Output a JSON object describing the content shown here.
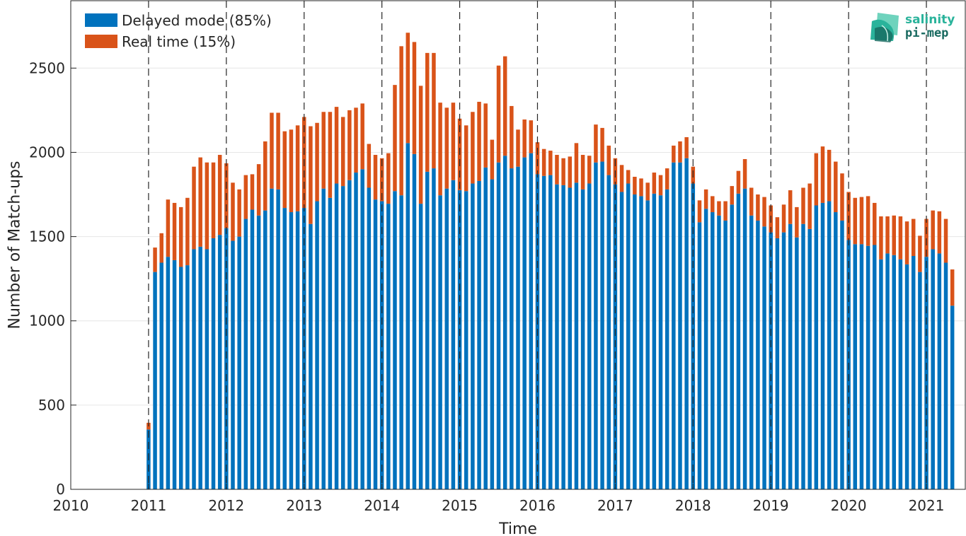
{
  "chart_data": {
    "type": "bar",
    "stacked": true,
    "xlabel": "Time",
    "ylabel": "Number of Match-ups",
    "xlim": [
      2010,
      2021.5
    ],
    "ylim": [
      0,
      2900
    ],
    "x_ticks": [
      "2010",
      "2011",
      "2012",
      "2013",
      "2014",
      "2015",
      "2016",
      "2017",
      "2018",
      "2019",
      "2020",
      "2021"
    ],
    "y_ticks": [
      0,
      500,
      1000,
      1500,
      2000,
      2500
    ],
    "grid": "horizontal",
    "year_separators": "dashed",
    "legend_position": "top-left",
    "start_month": "2011-01",
    "series": [
      {
        "name": "Delayed mode (85%)",
        "color": "#0072BD",
        "values": [
          355,
          1290,
          1345,
          1380,
          1360,
          1320,
          1330,
          1425,
          1440,
          1425,
          1490,
          1510,
          1550,
          1475,
          1500,
          1605,
          1660,
          1625,
          1655,
          1785,
          1780,
          1670,
          1645,
          1650,
          1670,
          1575,
          1710,
          1785,
          1730,
          1815,
          1800,
          1835,
          1880,
          1900,
          1790,
          1720,
          1710,
          1695,
          1770,
          1745,
          2055,
          1990,
          1695,
          1885,
          1905,
          1745,
          1785,
          1835,
          1775,
          1770,
          1815,
          1830,
          1910,
          1840,
          1940,
          1980,
          1905,
          1915,
          1970,
          1995,
          1870,
          1860,
          1865,
          1810,
          1805,
          1790,
          1820,
          1780,
          1815,
          1940,
          1945,
          1865,
          1810,
          1765,
          1815,
          1750,
          1740,
          1715,
          1755,
          1745,
          1780,
          1940,
          1940,
          1965,
          1815,
          1585,
          1665,
          1645,
          1625,
          1595,
          1690,
          1755,
          1785,
          1625,
          1595,
          1560,
          1525,
          1490,
          1525,
          1575,
          1495,
          1575,
          1545,
          1685,
          1700,
          1710,
          1645,
          1595,
          1480,
          1455,
          1455,
          1445,
          1450,
          1365,
          1400,
          1390,
          1365,
          1335,
          1385,
          1290,
          1380,
          1425,
          1400,
          1345,
          1090
        ]
      },
      {
        "name": "Real time (15%)",
        "color": "#D95319",
        "values": [
          40,
          145,
          175,
          340,
          340,
          355,
          400,
          490,
          530,
          515,
          450,
          475,
          385,
          345,
          280,
          260,
          210,
          305,
          410,
          450,
          455,
          455,
          490,
          510,
          540,
          580,
          465,
          455,
          510,
          455,
          410,
          415,
          385,
          390,
          260,
          265,
          255,
          300,
          630,
          885,
          655,
          665,
          700,
          705,
          685,
          550,
          480,
          460,
          425,
          390,
          425,
          470,
          380,
          235,
          575,
          590,
          370,
          220,
          225,
          195,
          190,
          160,
          145,
          175,
          160,
          185,
          235,
          205,
          165,
          225,
          200,
          175,
          155,
          160,
          80,
          105,
          105,
          105,
          125,
          120,
          125,
          100,
          125,
          125,
          100,
          130,
          115,
          95,
          85,
          115,
          110,
          135,
          175,
          165,
          155,
          175,
          160,
          125,
          165,
          200,
          180,
          215,
          270,
          310,
          335,
          305,
          300,
          280,
          285,
          275,
          280,
          295,
          250,
          255,
          220,
          235,
          255,
          255,
          220,
          215,
          225,
          230,
          250,
          260,
          215
        ]
      }
    ]
  },
  "logo": {
    "line1": "salinity",
    "line2": "pi-mep",
    "icon": "wave-logo-icon"
  }
}
